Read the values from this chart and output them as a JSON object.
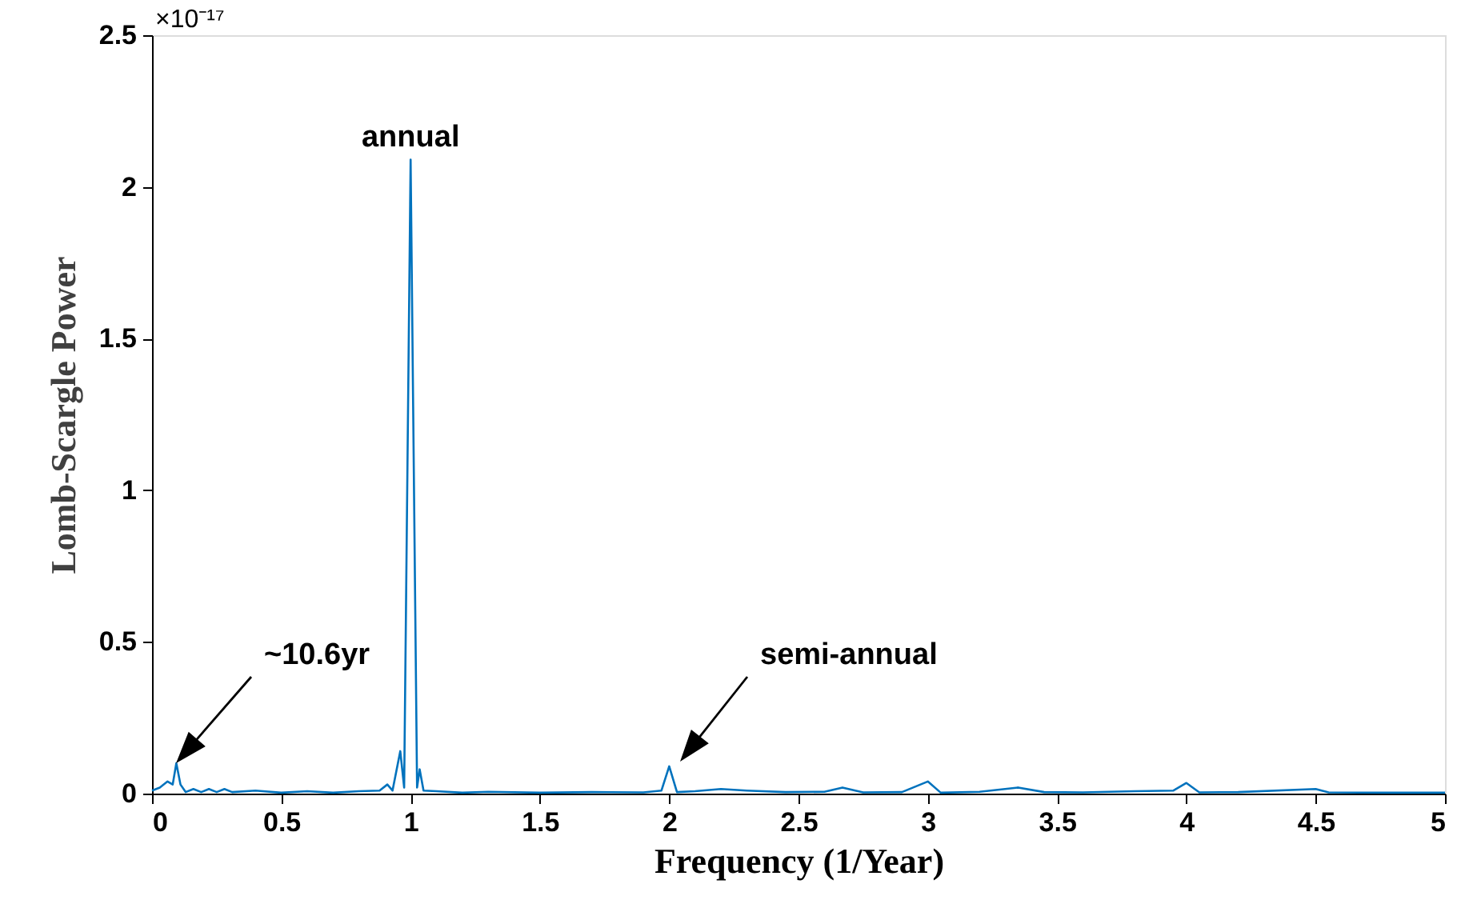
{
  "chart_data": {
    "type": "line",
    "xlabel": "Frequency (1/Year)",
    "ylabel": "Lomb-Scargle Power",
    "x": [
      0,
      0.03,
      0.06,
      0.08,
      0.094,
      0.11,
      0.13,
      0.16,
      0.19,
      0.22,
      0.25,
      0.28,
      0.31,
      0.4,
      0.5,
      0.6,
      0.7,
      0.8,
      0.88,
      0.91,
      0.93,
      0.96,
      0.975,
      1.0,
      1.025,
      1.035,
      1.05,
      1.1,
      1.2,
      1.3,
      1.5,
      1.7,
      1.9,
      1.97,
      2.0,
      2.03,
      2.1,
      2.2,
      2.3,
      2.45,
      2.6,
      2.67,
      2.75,
      2.9,
      3.0,
      3.05,
      3.2,
      3.35,
      3.45,
      3.6,
      3.8,
      3.95,
      4.0,
      4.05,
      4.2,
      4.5,
      4.55,
      4.8,
      5.0
    ],
    "series": [
      {
        "color": "#0072bd",
        "values": [
          0.01,
          0.02,
          0.04,
          0.03,
          0.1,
          0.03,
          0.005,
          0.015,
          0.005,
          0.015,
          0.005,
          0.015,
          0.005,
          0.01,
          0.003,
          0.008,
          0.003,
          0.008,
          0.01,
          0.03,
          0.01,
          0.14,
          0.02,
          2.09,
          0.02,
          0.08,
          0.01,
          0.008,
          0.003,
          0.006,
          0.003,
          0.005,
          0.004,
          0.01,
          0.09,
          0.005,
          0.008,
          0.015,
          0.01,
          0.005,
          0.006,
          0.02,
          0.004,
          0.005,
          0.04,
          0.003,
          0.006,
          0.02,
          0.005,
          0.004,
          0.008,
          0.01,
          0.035,
          0.004,
          0.005,
          0.015,
          0.004,
          0.003,
          0.003
        ]
      }
    ],
    "xlim": [
      0,
      5
    ],
    "xticks": [
      0,
      0.5,
      1,
      1.5,
      2,
      2.5,
      3,
      3.5,
      4,
      4.5,
      5
    ],
    "ylim": [
      0,
      2.5
    ],
    "yticks": [
      0,
      0.5,
      1,
      1.5,
      2,
      2.5
    ],
    "grid": false,
    "marker": "none",
    "line_style": "solid",
    "annotations": [
      "×10⁻¹⁷",
      {
        "text": "annual",
        "x": 1.0,
        "y": 2.09
      },
      "~10.6yr",
      "semi-annual"
    ]
  }
}
